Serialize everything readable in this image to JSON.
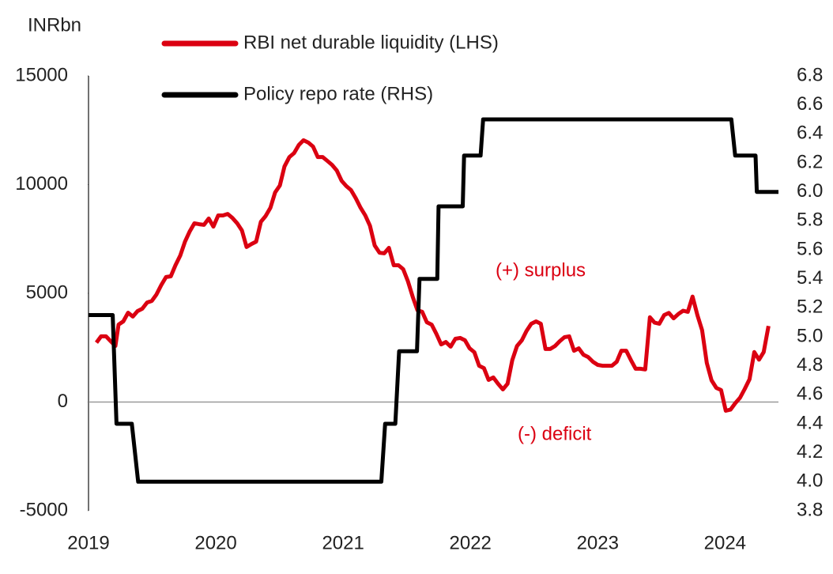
{
  "chart_data": {
    "type": "line",
    "y_label": "INRbn",
    "annotations": [
      "(+) surplus",
      "(-) deficit"
    ],
    "xlim": [
      2019,
      2024.42
    ],
    "xticks": [
      2019,
      2020,
      2021,
      2022,
      2023,
      2024
    ],
    "ylim": [
      -5000,
      15000
    ],
    "yticks": [
      -5000,
      0,
      5000,
      10000,
      15000
    ],
    "y2lim": [
      3.8,
      6.8
    ],
    "y2ticks": [
      3.8,
      {
        "value": 4,
        "label": "4.0"
      },
      4.2,
      4.4,
      4.6,
      4.8,
      {
        "value": 5,
        "label": "5.0"
      },
      5.2,
      5.4,
      5.6,
      5.8,
      {
        "value": 6,
        "label": "6.0"
      },
      6.2,
      6.4,
      6.6,
      6.8
    ],
    "series": [
      {
        "name": "RBI net durable liquidity (LHS)",
        "color": "#db0011",
        "x": [
          2019.062,
          2019.099,
          2019.137,
          2019.174,
          2019.211,
          2019.236,
          2019.273,
          2019.311,
          2019.348,
          2019.385,
          2019.422,
          2019.46,
          2019.497,
          2019.534,
          2019.571,
          2019.609,
          2019.646,
          2019.683,
          2019.72,
          2019.758,
          2019.795,
          2019.832,
          2019.87,
          2019.907,
          2019.944,
          2019.981,
          2020.019,
          2020.056,
          2020.093,
          2020.13,
          2020.168,
          2020.205,
          2020.242,
          2020.28,
          2020.317,
          2020.354,
          2020.391,
          2020.429,
          2020.466,
          2020.503,
          2020.54,
          2020.578,
          2020.615,
          2020.652,
          2020.689,
          2020.727,
          2020.764,
          2020.801,
          2020.839,
          2020.876,
          2020.913,
          2020.95,
          2020.988,
          2021.025,
          2021.062,
          2021.099,
          2021.137,
          2021.174,
          2021.211,
          2021.248,
          2021.286,
          2021.323,
          2021.36,
          2021.398,
          2021.435,
          2021.472,
          2021.509,
          2021.547,
          2021.584,
          2021.621,
          2021.658,
          2021.696,
          2021.733,
          2021.77,
          2021.807,
          2021.845,
          2021.882,
          2021.919,
          2021.957,
          2021.994,
          2022.031,
          2022.068,
          2022.106,
          2022.143,
          2022.18,
          2022.217,
          2022.255,
          2022.292,
          2022.329,
          2022.366,
          2022.404,
          2022.441,
          2022.478,
          2022.516,
          2022.553,
          2022.59,
          2022.627,
          2022.665,
          2022.702,
          2022.739,
          2022.776,
          2022.814,
          2022.851,
          2022.888,
          2022.925,
          2022.963,
          2023.0,
          2023.037,
          2023.075,
          2023.112,
          2023.149,
          2023.186,
          2023.224,
          2023.261,
          2023.298,
          2023.335,
          2023.373,
          2023.41,
          2023.447,
          2023.484,
          2023.522,
          2023.559,
          2023.596,
          2023.634,
          2023.671,
          2023.708,
          2023.745,
          2023.783,
          2023.82,
          2023.857,
          2023.894,
          2023.932,
          2023.969,
          2024.006,
          2024.043,
          2024.081,
          2024.118,
          2024.155,
          2024.193,
          2024.23,
          2024.267,
          2024.304,
          2024.342
        ],
        "values": [
          2730,
          3020,
          3020,
          2800,
          2580,
          3560,
          3710,
          4110,
          3930,
          4180,
          4290,
          4580,
          4650,
          4950,
          5380,
          5750,
          5780,
          6290,
          6730,
          7380,
          7850,
          8220,
          8180,
          8150,
          8440,
          8070,
          8580,
          8580,
          8650,
          8470,
          8220,
          7890,
          7130,
          7270,
          7380,
          8290,
          8550,
          8940,
          9640,
          9960,
          10840,
          11270,
          11450,
          11820,
          12040,
          11930,
          11750,
          11270,
          11270,
          11090,
          10910,
          10650,
          10180,
          9930,
          9750,
          9380,
          8940,
          8580,
          8110,
          7200,
          6870,
          6840,
          7090,
          6290,
          6290,
          6110,
          5560,
          4840,
          4220,
          4150,
          3670,
          3560,
          3130,
          2650,
          2760,
          2550,
          2910,
          2950,
          2840,
          2470,
          2290,
          1670,
          1560,
          1020,
          1130,
          840,
          580,
          840,
          1930,
          2580,
          2840,
          3270,
          3600,
          3710,
          3600,
          2440,
          2440,
          2580,
          2800,
          2980,
          3020,
          2360,
          2470,
          2180,
          2070,
          1850,
          1710,
          1670,
          1670,
          1670,
          1850,
          2360,
          2360,
          1930,
          1530,
          1530,
          1500,
          3900,
          3650,
          3600,
          4000,
          4100,
          3850,
          4050,
          4200,
          4150,
          4850,
          4000,
          3300,
          1800,
          1000,
          650,
          550,
          -400,
          -350,
          -50,
          200,
          600,
          1050,
          2300,
          1950,
          2300,
          3500
        ]
      },
      {
        "name": "Policy repo rate (RHS)",
        "color": "#000000",
        "axis": "y2",
        "x": [
          2019.0,
          2019.19,
          2019.22,
          2019.34,
          2019.39,
          2021.3,
          2021.33,
          2021.41,
          2021.44,
          2021.58,
          2021.6,
          2021.74,
          2021.75,
          2021.94,
          2021.95,
          2022.08,
          2022.1,
          2024.05,
          2024.08,
          2024.24,
          2024.25,
          2024.42
        ],
        "values": [
          5.15,
          5.15,
          4.4,
          4.4,
          4.0,
          4.0,
          4.4,
          4.4,
          4.9,
          4.9,
          5.4,
          5.4,
          5.9,
          5.9,
          6.25,
          6.25,
          6.5,
          6.5,
          6.25,
          6.25,
          6.0,
          6.0
        ]
      }
    ]
  }
}
